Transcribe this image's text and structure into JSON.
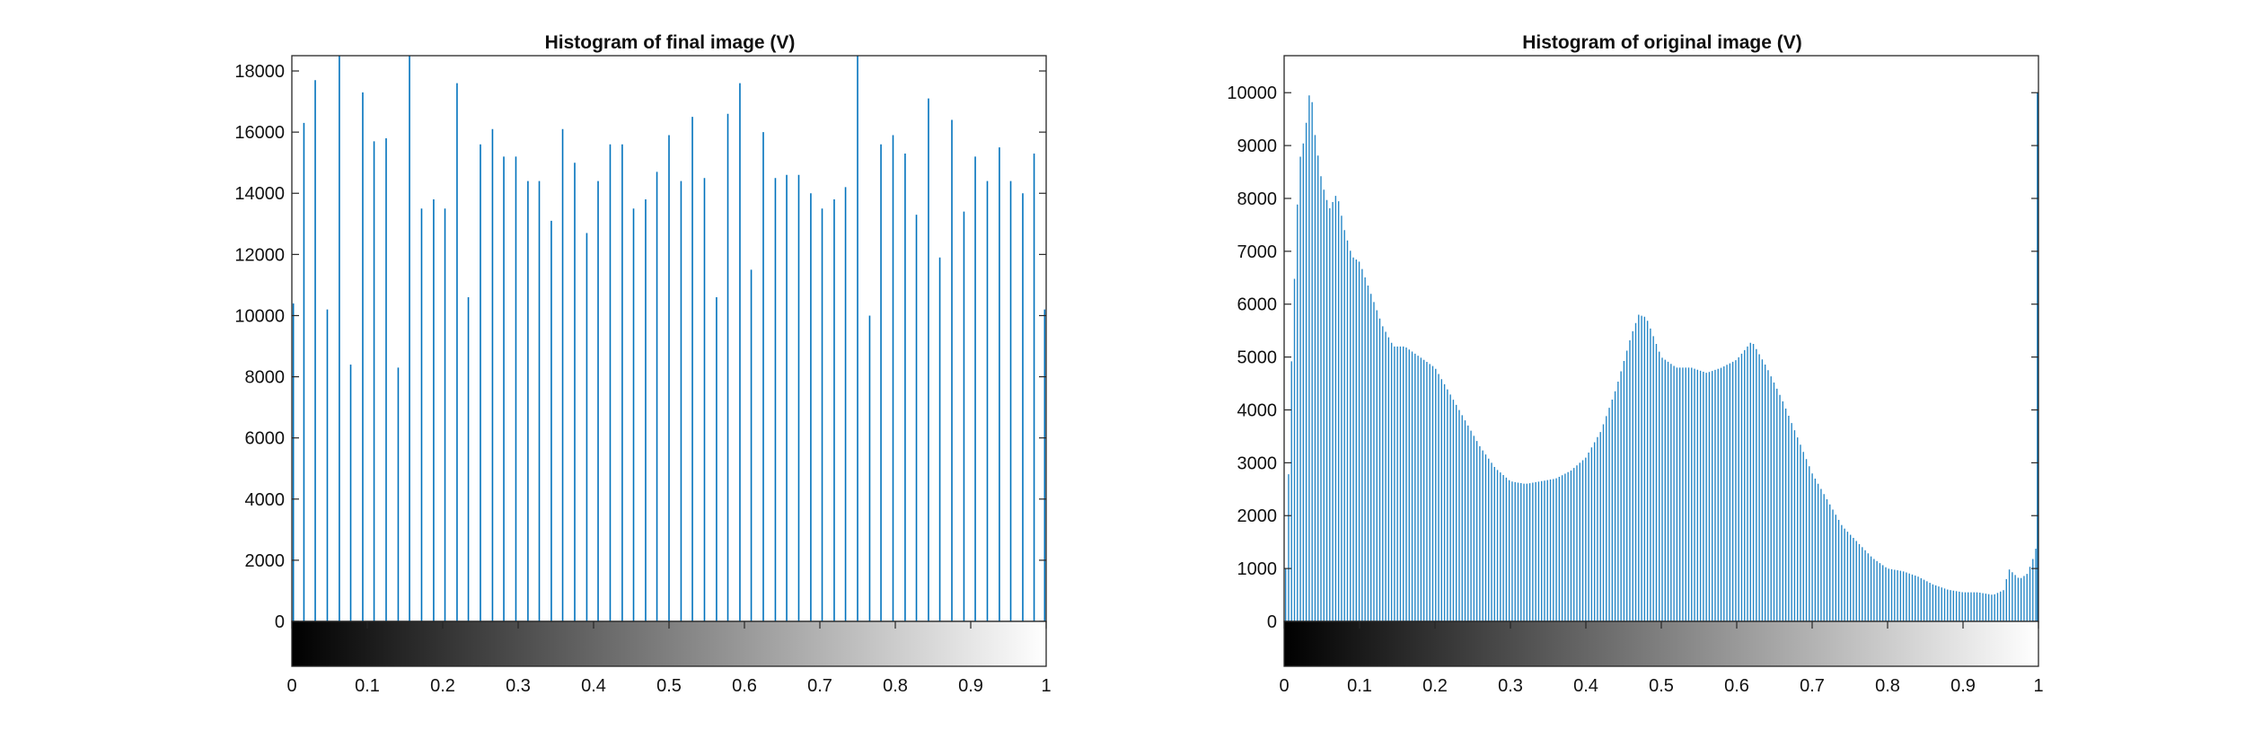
{
  "chart_data": [
    {
      "type": "bar",
      "title": "Histogram of final image (V)",
      "xlabel": "",
      "ylabel": "",
      "xlim": [
        0,
        1
      ],
      "ylim": [
        0,
        18500
      ],
      "bar_color": "#0072BD",
      "grid": false,
      "colorbar": "grayscale 0-1 below x-axis",
      "xticks": [
        "0",
        "0.1",
        "0.2",
        "0.3",
        "0.4",
        "0.5",
        "0.6",
        "0.7",
        "0.8",
        "0.9",
        "1"
      ],
      "yticks": [
        "0",
        "2000",
        "4000",
        "6000",
        "8000",
        "10000",
        "12000",
        "14000",
        "16000",
        "18000"
      ],
      "x": [
        0.002,
        0.016,
        0.031,
        0.047,
        0.063,
        0.078,
        0.094,
        0.109,
        0.125,
        0.141,
        0.156,
        0.172,
        0.188,
        0.203,
        0.219,
        0.234,
        0.25,
        0.266,
        0.281,
        0.297,
        0.313,
        0.328,
        0.344,
        0.359,
        0.375,
        0.391,
        0.406,
        0.422,
        0.438,
        0.453,
        0.469,
        0.484,
        0.5,
        0.516,
        0.531,
        0.547,
        0.563,
        0.578,
        0.594,
        0.609,
        0.625,
        0.641,
        0.656,
        0.672,
        0.688,
        0.703,
        0.719,
        0.734,
        0.75,
        0.766,
        0.781,
        0.797,
        0.813,
        0.828,
        0.844,
        0.859,
        0.875,
        0.891,
        0.906,
        0.922,
        0.938,
        0.953,
        0.969,
        0.984,
        0.998
      ],
      "values": [
        10400,
        16300,
        17700,
        10200,
        18500,
        8400,
        17300,
        15700,
        15800,
        8300,
        18500,
        13500,
        13800,
        13500,
        17600,
        10600,
        15600,
        16100,
        15200,
        15200,
        14400,
        14400,
        13100,
        16100,
        15000,
        12700,
        14400,
        15600,
        15600,
        13500,
        13800,
        14700,
        15900,
        14400,
        16500,
        14500,
        10600,
        16600,
        17600,
        11500,
        16000,
        14500,
        14600,
        14600,
        14000,
        13500,
        13800,
        14200,
        18500,
        10000,
        15600,
        15900,
        15300,
        13300,
        17100,
        11900,
        16400,
        13400,
        15200,
        14400,
        15500,
        14400,
        14000,
        15300,
        10200
      ]
    },
    {
      "type": "bar",
      "title": "Histogram of original image (V)",
      "xlabel": "",
      "ylabel": "",
      "xlim": [
        0,
        1
      ],
      "ylim": [
        0,
        10700
      ],
      "bar_color": "#0072BD",
      "grid": false,
      "colorbar": "grayscale 0-1 below x-axis",
      "xticks": [
        "0",
        "0.1",
        "0.2",
        "0.3",
        "0.4",
        "0.5",
        "0.6",
        "0.7",
        "0.8",
        "0.9",
        "1"
      ],
      "yticks": [
        "0",
        "1000",
        "2000",
        "3000",
        "4000",
        "5000",
        "6000",
        "7000",
        "8000",
        "9000",
        "10000"
      ],
      "bin_start": 0.002,
      "bin_width": 0.0039,
      "envelope": [
        [
          0.0,
          500
        ],
        [
          0.004,
          1500
        ],
        [
          0.008,
          4200
        ],
        [
          0.015,
          7000
        ],
        [
          0.02,
          8700
        ],
        [
          0.025,
          9000
        ],
        [
          0.03,
          9500
        ],
        [
          0.035,
          10200
        ],
        [
          0.04,
          9300
        ],
        [
          0.05,
          8300
        ],
        [
          0.06,
          7800
        ],
        [
          0.07,
          8100
        ],
        [
          0.08,
          7400
        ],
        [
          0.09,
          6900
        ],
        [
          0.1,
          6800
        ],
        [
          0.115,
          6200
        ],
        [
          0.13,
          5600
        ],
        [
          0.145,
          5200
        ],
        [
          0.16,
          5200
        ],
        [
          0.18,
          5000
        ],
        [
          0.2,
          4800
        ],
        [
          0.22,
          4300
        ],
        [
          0.24,
          3800
        ],
        [
          0.26,
          3300
        ],
        [
          0.28,
          2900
        ],
        [
          0.3,
          2650
        ],
        [
          0.32,
          2600
        ],
        [
          0.34,
          2650
        ],
        [
          0.36,
          2700
        ],
        [
          0.38,
          2850
        ],
        [
          0.4,
          3100
        ],
        [
          0.42,
          3600
        ],
        [
          0.44,
          4400
        ],
        [
          0.46,
          5400
        ],
        [
          0.47,
          5800
        ],
        [
          0.48,
          5750
        ],
        [
          0.5,
          5000
        ],
        [
          0.52,
          4800
        ],
        [
          0.54,
          4800
        ],
        [
          0.56,
          4700
        ],
        [
          0.58,
          4800
        ],
        [
          0.6,
          4950
        ],
        [
          0.62,
          5300
        ],
        [
          0.64,
          4800
        ],
        [
          0.66,
          4200
        ],
        [
          0.68,
          3500
        ],
        [
          0.7,
          2800
        ],
        [
          0.72,
          2300
        ],
        [
          0.74,
          1800
        ],
        [
          0.76,
          1500
        ],
        [
          0.78,
          1200
        ],
        [
          0.8,
          1000
        ],
        [
          0.82,
          950
        ],
        [
          0.84,
          850
        ],
        [
          0.86,
          700
        ],
        [
          0.88,
          600
        ],
        [
          0.9,
          550
        ],
        [
          0.92,
          550
        ],
        [
          0.94,
          500
        ],
        [
          0.955,
          600
        ],
        [
          0.96,
          1000
        ],
        [
          0.975,
          800
        ],
        [
          0.985,
          900
        ],
        [
          0.992,
          1150
        ],
        [
          0.998,
          1450
        ]
      ],
      "edge_value": 10000
    }
  ]
}
